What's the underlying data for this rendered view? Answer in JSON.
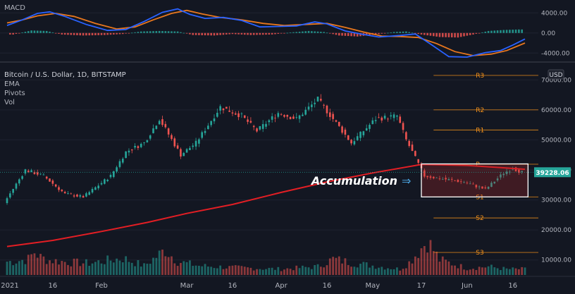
{
  "chart_data": [
    {
      "type": "line",
      "title": "MACD",
      "panel": "macd",
      "x_range": [
        "2021-01-01",
        "2021-06-20"
      ],
      "y_range": [
        -5500,
        6000
      ],
      "y_ticks": [
        "4000.00",
        "0.00",
        "-4000.00"
      ],
      "y_tick_values": [
        4000,
        0,
        -4000
      ],
      "series": [
        {
          "role": "macd-line",
          "color": "#2962ff",
          "points": [
            [
              "2021-01-01",
              1500
            ],
            [
              "2021-01-06",
              2600
            ],
            [
              "2021-01-11",
              3900
            ],
            [
              "2021-01-15",
              4200
            ],
            [
              "2021-01-20",
              3300
            ],
            [
              "2021-01-27",
              1700
            ],
            [
              "2021-02-03",
              500
            ],
            [
              "2021-02-09",
              700
            ],
            [
              "2021-02-15",
              2300
            ],
            [
              "2021-02-21",
              4100
            ],
            [
              "2021-02-26",
              4800
            ],
            [
              "2021-03-02",
              3700
            ],
            [
              "2021-03-07",
              2900
            ],
            [
              "2021-03-13",
              3100
            ],
            [
              "2021-03-19",
              2500
            ],
            [
              "2021-03-25",
              1200
            ],
            [
              "2021-03-31",
              1300
            ],
            [
              "2021-04-06",
              1400
            ],
            [
              "2021-04-12",
              2200
            ],
            [
              "2021-04-16",
              1800
            ],
            [
              "2021-04-22",
              400
            ],
            [
              "2021-04-28",
              -300
            ],
            [
              "2021-05-03",
              -800
            ],
            [
              "2021-05-10",
              -500
            ],
            [
              "2021-05-15",
              -200
            ],
            [
              "2021-05-20",
              -2200
            ],
            [
              "2021-05-26",
              -4700
            ],
            [
              "2021-06-01",
              -4800
            ],
            [
              "2021-06-07",
              -3900
            ],
            [
              "2021-06-12",
              -3500
            ],
            [
              "2021-06-16",
              -2400
            ],
            [
              "2021-06-20",
              -1200
            ]
          ]
        },
        {
          "role": "signal-line",
          "color": "#e8771e",
          "points": [
            [
              "2021-01-01",
              2000
            ],
            [
              "2021-01-06",
              2600
            ],
            [
              "2021-01-11",
              3400
            ],
            [
              "2021-01-17",
              3900
            ],
            [
              "2021-01-23",
              3300
            ],
            [
              "2021-01-30",
              1900
            ],
            [
              "2021-02-06",
              800
            ],
            [
              "2021-02-12",
              1200
            ],
            [
              "2021-02-18",
              2600
            ],
            [
              "2021-02-24",
              3900
            ],
            [
              "2021-03-01",
              4500
            ],
            [
              "2021-03-06",
              3800
            ],
            [
              "2021-03-12",
              3100
            ],
            [
              "2021-03-19",
              2600
            ],
            [
              "2021-03-26",
              1900
            ],
            [
              "2021-04-02",
              1500
            ],
            [
              "2021-04-09",
              1700
            ],
            [
              "2021-04-16",
              1900
            ],
            [
              "2021-04-22",
              1100
            ],
            [
              "2021-04-28",
              200
            ],
            [
              "2021-05-04",
              -600
            ],
            [
              "2021-05-10",
              -700
            ],
            [
              "2021-05-16",
              -900
            ],
            [
              "2021-05-22",
              -2100
            ],
            [
              "2021-05-28",
              -3700
            ],
            [
              "2021-06-03",
              -4500
            ],
            [
              "2021-06-09",
              -4200
            ],
            [
              "2021-06-14",
              -3500
            ],
            [
              "2021-06-20",
              -2000
            ]
          ]
        }
      ],
      "histogram": {
        "positive_color": "#26a69a",
        "negative_color": "#ef5350",
        "points": [
          [
            "2021-01-03",
            -300
          ],
          [
            "2021-01-09",
            500
          ],
          [
            "2021-01-14",
            400
          ],
          [
            "2021-01-19",
            -300
          ],
          [
            "2021-01-26",
            -500
          ],
          [
            "2021-02-02",
            -400
          ],
          [
            "2021-02-08",
            -200
          ],
          [
            "2021-02-14",
            300
          ],
          [
            "2021-02-20",
            400
          ],
          [
            "2021-02-26",
            300
          ],
          [
            "2021-03-03",
            -400
          ],
          [
            "2021-03-10",
            -500
          ],
          [
            "2021-03-16",
            -200
          ],
          [
            "2021-03-22",
            -400
          ],
          [
            "2021-03-29",
            -300
          ],
          [
            "2021-04-04",
            100
          ],
          [
            "2021-04-10",
            400
          ],
          [
            "2021-04-15",
            200
          ],
          [
            "2021-04-20",
            -500
          ],
          [
            "2021-04-26",
            -700
          ],
          [
            "2021-05-02",
            -300
          ],
          [
            "2021-05-08",
            200
          ],
          [
            "2021-05-12",
            300
          ],
          [
            "2021-05-17",
            -300
          ],
          [
            "2021-05-23",
            -800
          ],
          [
            "2021-05-29",
            -900
          ],
          [
            "2021-06-03",
            -300
          ],
          [
            "2021-06-08",
            400
          ],
          [
            "2021-06-13",
            600
          ],
          [
            "2021-06-18",
            700
          ]
        ]
      }
    },
    {
      "type": "candlestick",
      "title": "Bitcoin / U.S. Dollar, 1D, BITSTAMP",
      "indicators": [
        "EMA",
        "Pivots",
        "Vol"
      ],
      "panel": "price",
      "currency_label": "USD",
      "x_range": [
        "2021-01-01",
        "2021-06-20"
      ],
      "y_range": [
        5000,
        75000
      ],
      "y_ticks": [
        "70000.00",
        "60000.00",
        "50000.00",
        "40000.00",
        "30000.00",
        "20000.00",
        "10000.00"
      ],
      "y_tick_values": [
        70000,
        60000,
        50000,
        40000,
        30000,
        20000,
        10000
      ],
      "x_ticks": [
        {
          "label": "2021",
          "date": "2021-01-01"
        },
        {
          "label": "16",
          "date": "2021-01-16"
        },
        {
          "label": "Feb",
          "date": "2021-02-01"
        },
        {
          "label": "Mar",
          "date": "2021-03-01"
        },
        {
          "label": "16",
          "date": "2021-03-16"
        },
        {
          "label": "Apr",
          "date": "2021-04-01"
        },
        {
          "label": "16",
          "date": "2021-04-16"
        },
        {
          "label": "May",
          "date": "2021-05-01"
        },
        {
          "label": "17",
          "date": "2021-05-17"
        },
        {
          "label": "Jun",
          "date": "2021-06-01"
        },
        {
          "label": "16",
          "date": "2021-06-16"
        }
      ],
      "close_path": [
        [
          "2021-01-01",
          29000
        ],
        [
          "2021-01-08",
          40000
        ],
        [
          "2021-01-14",
          38000
        ],
        [
          "2021-01-21",
          32000
        ],
        [
          "2021-01-27",
          31000
        ],
        [
          "2021-02-05",
          38000
        ],
        [
          "2021-02-10",
          46000
        ],
        [
          "2021-02-16",
          49000
        ],
        [
          "2021-02-21",
          57000
        ],
        [
          "2021-02-28",
          45000
        ],
        [
          "2021-03-05",
          49000
        ],
        [
          "2021-03-13",
          61000
        ],
        [
          "2021-03-20",
          58000
        ],
        [
          "2021-03-25",
          53000
        ],
        [
          "2021-04-01",
          59000
        ],
        [
          "2021-04-07",
          57000
        ],
        [
          "2021-04-14",
          63500
        ],
        [
          "2021-04-19",
          57000
        ],
        [
          "2021-04-25",
          49000
        ],
        [
          "2021-05-03",
          57000
        ],
        [
          "2021-05-10",
          58000
        ],
        [
          "2021-05-13",
          50000
        ],
        [
          "2021-05-19",
          38000
        ],
        [
          "2021-05-25",
          37000
        ],
        [
          "2021-06-01",
          36000
        ],
        [
          "2021-06-08",
          33500
        ],
        [
          "2021-06-14",
          39000
        ],
        [
          "2021-06-17",
          40500
        ],
        [
          "2021-06-20",
          39200
        ]
      ],
      "ema": {
        "name": "EMA",
        "color": "#e31e24",
        "points": [
          [
            "2021-01-01",
            14500
          ],
          [
            "2021-01-16",
            16500
          ],
          [
            "2021-02-01",
            19500
          ],
          [
            "2021-02-16",
            22500
          ],
          [
            "2021-03-01",
            25500
          ],
          [
            "2021-03-16",
            28500
          ],
          [
            "2021-04-01",
            32500
          ],
          [
            "2021-04-16",
            36000
          ],
          [
            "2021-05-01",
            39000
          ],
          [
            "2021-05-17",
            41800
          ],
          [
            "2021-06-01",
            41500
          ],
          [
            "2021-06-16",
            40500
          ],
          [
            "2021-06-20",
            40200
          ]
        ]
      },
      "pivots": {
        "color": "#f7931a",
        "levels": [
          {
            "label": "R3",
            "value": 71500
          },
          {
            "label": "R2",
            "value": 60000
          },
          {
            "label": "R1",
            "value": 53300
          },
          {
            "label": "P",
            "value": 41900
          },
          {
            "label": "S1",
            "value": 31000
          },
          {
            "label": "S2",
            "value": 24000
          },
          {
            "label": "S3",
            "value": 12500
          }
        ]
      },
      "last_price": {
        "value": 39228.06,
        "label": "39228.06",
        "color": "#26a69a"
      },
      "annotation": {
        "text": "Accumulation",
        "box_x": [
          "2021-05-17",
          "2021-06-21"
        ],
        "box_y": [
          31000,
          42000
        ],
        "arrow": "⇒"
      },
      "candle_colors": {
        "up": "#26a69a",
        "down": "#ef5350"
      },
      "volume": {
        "points": [
          [
            "2021-01-03",
            0.32
          ],
          [
            "2021-01-08",
            0.38
          ],
          [
            "2021-01-10",
            0.55
          ],
          [
            "2021-01-12",
            0.42
          ],
          [
            "2021-01-15",
            0.35
          ],
          [
            "2021-01-22",
            0.3
          ],
          [
            "2021-01-28",
            0.28
          ],
          [
            "2021-02-08",
            0.4
          ],
          [
            "2021-02-15",
            0.22
          ],
          [
            "2021-02-22",
            0.6
          ],
          [
            "2021-02-26",
            0.32
          ],
          [
            "2021-03-05",
            0.22
          ],
          [
            "2021-03-15",
            0.18
          ],
          [
            "2021-04-01",
            0.14
          ],
          [
            "2021-04-13",
            0.2
          ],
          [
            "2021-04-18",
            0.38
          ],
          [
            "2021-04-25",
            0.28
          ],
          [
            "2021-05-10",
            0.14
          ],
          [
            "2021-05-13",
            0.3
          ],
          [
            "2021-05-19",
            0.82
          ],
          [
            "2021-05-23",
            0.36
          ],
          [
            "2021-06-01",
            0.16
          ],
          [
            "2021-06-08",
            0.2
          ],
          [
            "2021-06-14",
            0.14
          ]
        ]
      }
    }
  ]
}
